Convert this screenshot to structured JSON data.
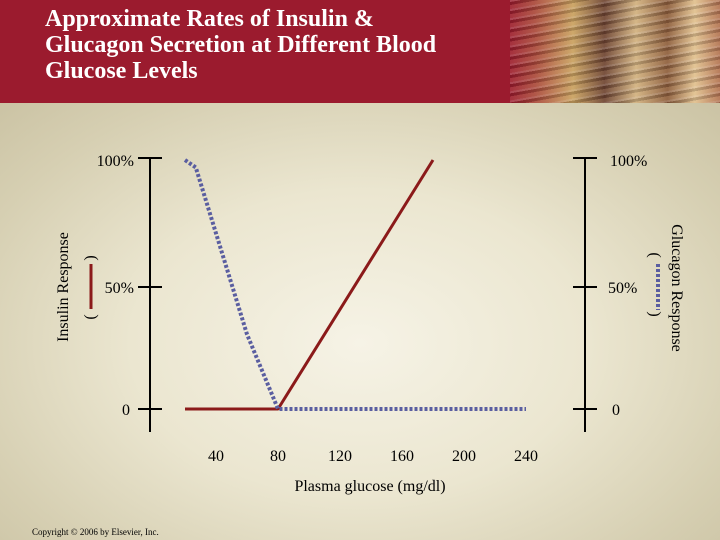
{
  "header": {
    "title_lines": [
      "Approximate Rates of Insulin &",
      "Glucagon Secretion at Different Blood",
      "Glucose Levels"
    ]
  },
  "colors": {
    "header_bg": "#9b1b2e",
    "insulin": "#8b1a1a",
    "glucagon": "#5a5ea0"
  },
  "chart_data": {
    "type": "line",
    "xlabel": "Plasma glucose (mg/dl)",
    "x_ticks": [
      40,
      80,
      120,
      160,
      200,
      240
    ],
    "xlim": [
      0,
      260
    ],
    "ylim": [
      0,
      100
    ],
    "y_ticks_left": [
      "0",
      "50%",
      "100%"
    ],
    "y_ticks_right": [
      "0",
      "50%",
      "100%"
    ],
    "ylabel_left": "Insulin Response",
    "ylabel_left_sub": "(",
    "ylabel_left_sub_end": ")",
    "ylabel_right": "Glucagon Response",
    "ylabel_right_sub": "(",
    "ylabel_right_sub_end": ")",
    "grid": false,
    "series": [
      {
        "name": "Insulin Response",
        "style": "solid",
        "color": "#8b1a1a",
        "x": [
          20,
          80,
          180
        ],
        "y": [
          0,
          0,
          100
        ]
      },
      {
        "name": "Glucagon Response",
        "style": "dotted",
        "color": "#5a5ea0",
        "x": [
          20,
          27,
          60,
          80,
          240
        ],
        "y": [
          100,
          97,
          30,
          0,
          0
        ]
      }
    ]
  },
  "copyright": "Copyright © 2006 by Elsevier, Inc."
}
